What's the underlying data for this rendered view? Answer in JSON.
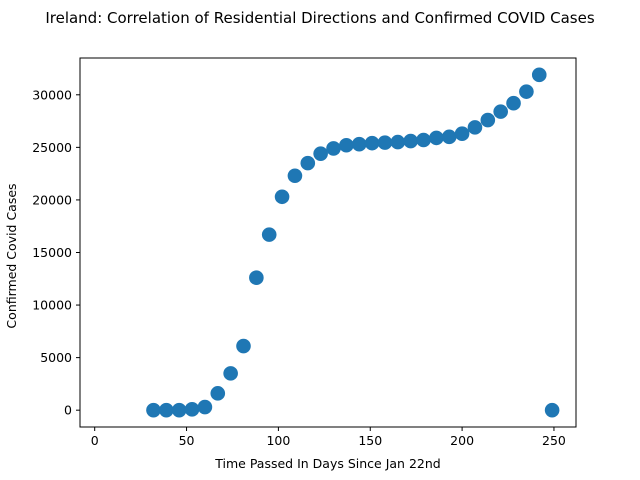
{
  "chart_data": {
    "type": "scatter",
    "title": "Ireland: Correlation of Residential Directions and Confirmed COVID Cases",
    "xlabel": "Time Passed In Days Since Jan 22nd",
    "ylabel": "Confirmed Covid Cases",
    "xlim": [
      -8,
      262
    ],
    "ylim": [
      -1600,
      33500
    ],
    "xticks": [
      0,
      50,
      100,
      150,
      200,
      250
    ],
    "xtick_labels": [
      "0",
      "50",
      "100",
      "150",
      "200",
      "250"
    ],
    "yticks": [
      0,
      5000,
      10000,
      15000,
      20000,
      25000,
      30000
    ],
    "ytick_labels": [
      "0",
      "5000",
      "10000",
      "15000",
      "20000",
      "25000",
      "30000"
    ],
    "grid": false,
    "marker_color": "#1f77b4",
    "points": [
      {
        "x": 32,
        "y": 0
      },
      {
        "x": 39,
        "y": 0
      },
      {
        "x": 46,
        "y": 0
      },
      {
        "x": 53,
        "y": 80
      },
      {
        "x": 60,
        "y": 300
      },
      {
        "x": 67,
        "y": 1600
      },
      {
        "x": 74,
        "y": 3500
      },
      {
        "x": 81,
        "y": 6100
      },
      {
        "x": 88,
        "y": 12600
      },
      {
        "x": 95,
        "y": 16700
      },
      {
        "x": 102,
        "y": 20300
      },
      {
        "x": 109,
        "y": 22300
      },
      {
        "x": 116,
        "y": 23500
      },
      {
        "x": 123,
        "y": 24400
      },
      {
        "x": 130,
        "y": 24900
      },
      {
        "x": 137,
        "y": 25200
      },
      {
        "x": 144,
        "y": 25300
      },
      {
        "x": 151,
        "y": 25400
      },
      {
        "x": 158,
        "y": 25450
      },
      {
        "x": 165,
        "y": 25500
      },
      {
        "x": 172,
        "y": 25600
      },
      {
        "x": 179,
        "y": 25700
      },
      {
        "x": 186,
        "y": 25900
      },
      {
        "x": 193,
        "y": 26000
      },
      {
        "x": 200,
        "y": 26300
      },
      {
        "x": 207,
        "y": 26900
      },
      {
        "x": 214,
        "y": 27600
      },
      {
        "x": 221,
        "y": 28400
      },
      {
        "x": 228,
        "y": 29200
      },
      {
        "x": 235,
        "y": 30300
      },
      {
        "x": 242,
        "y": 31900
      },
      {
        "x": 249,
        "y": 0
      }
    ]
  }
}
